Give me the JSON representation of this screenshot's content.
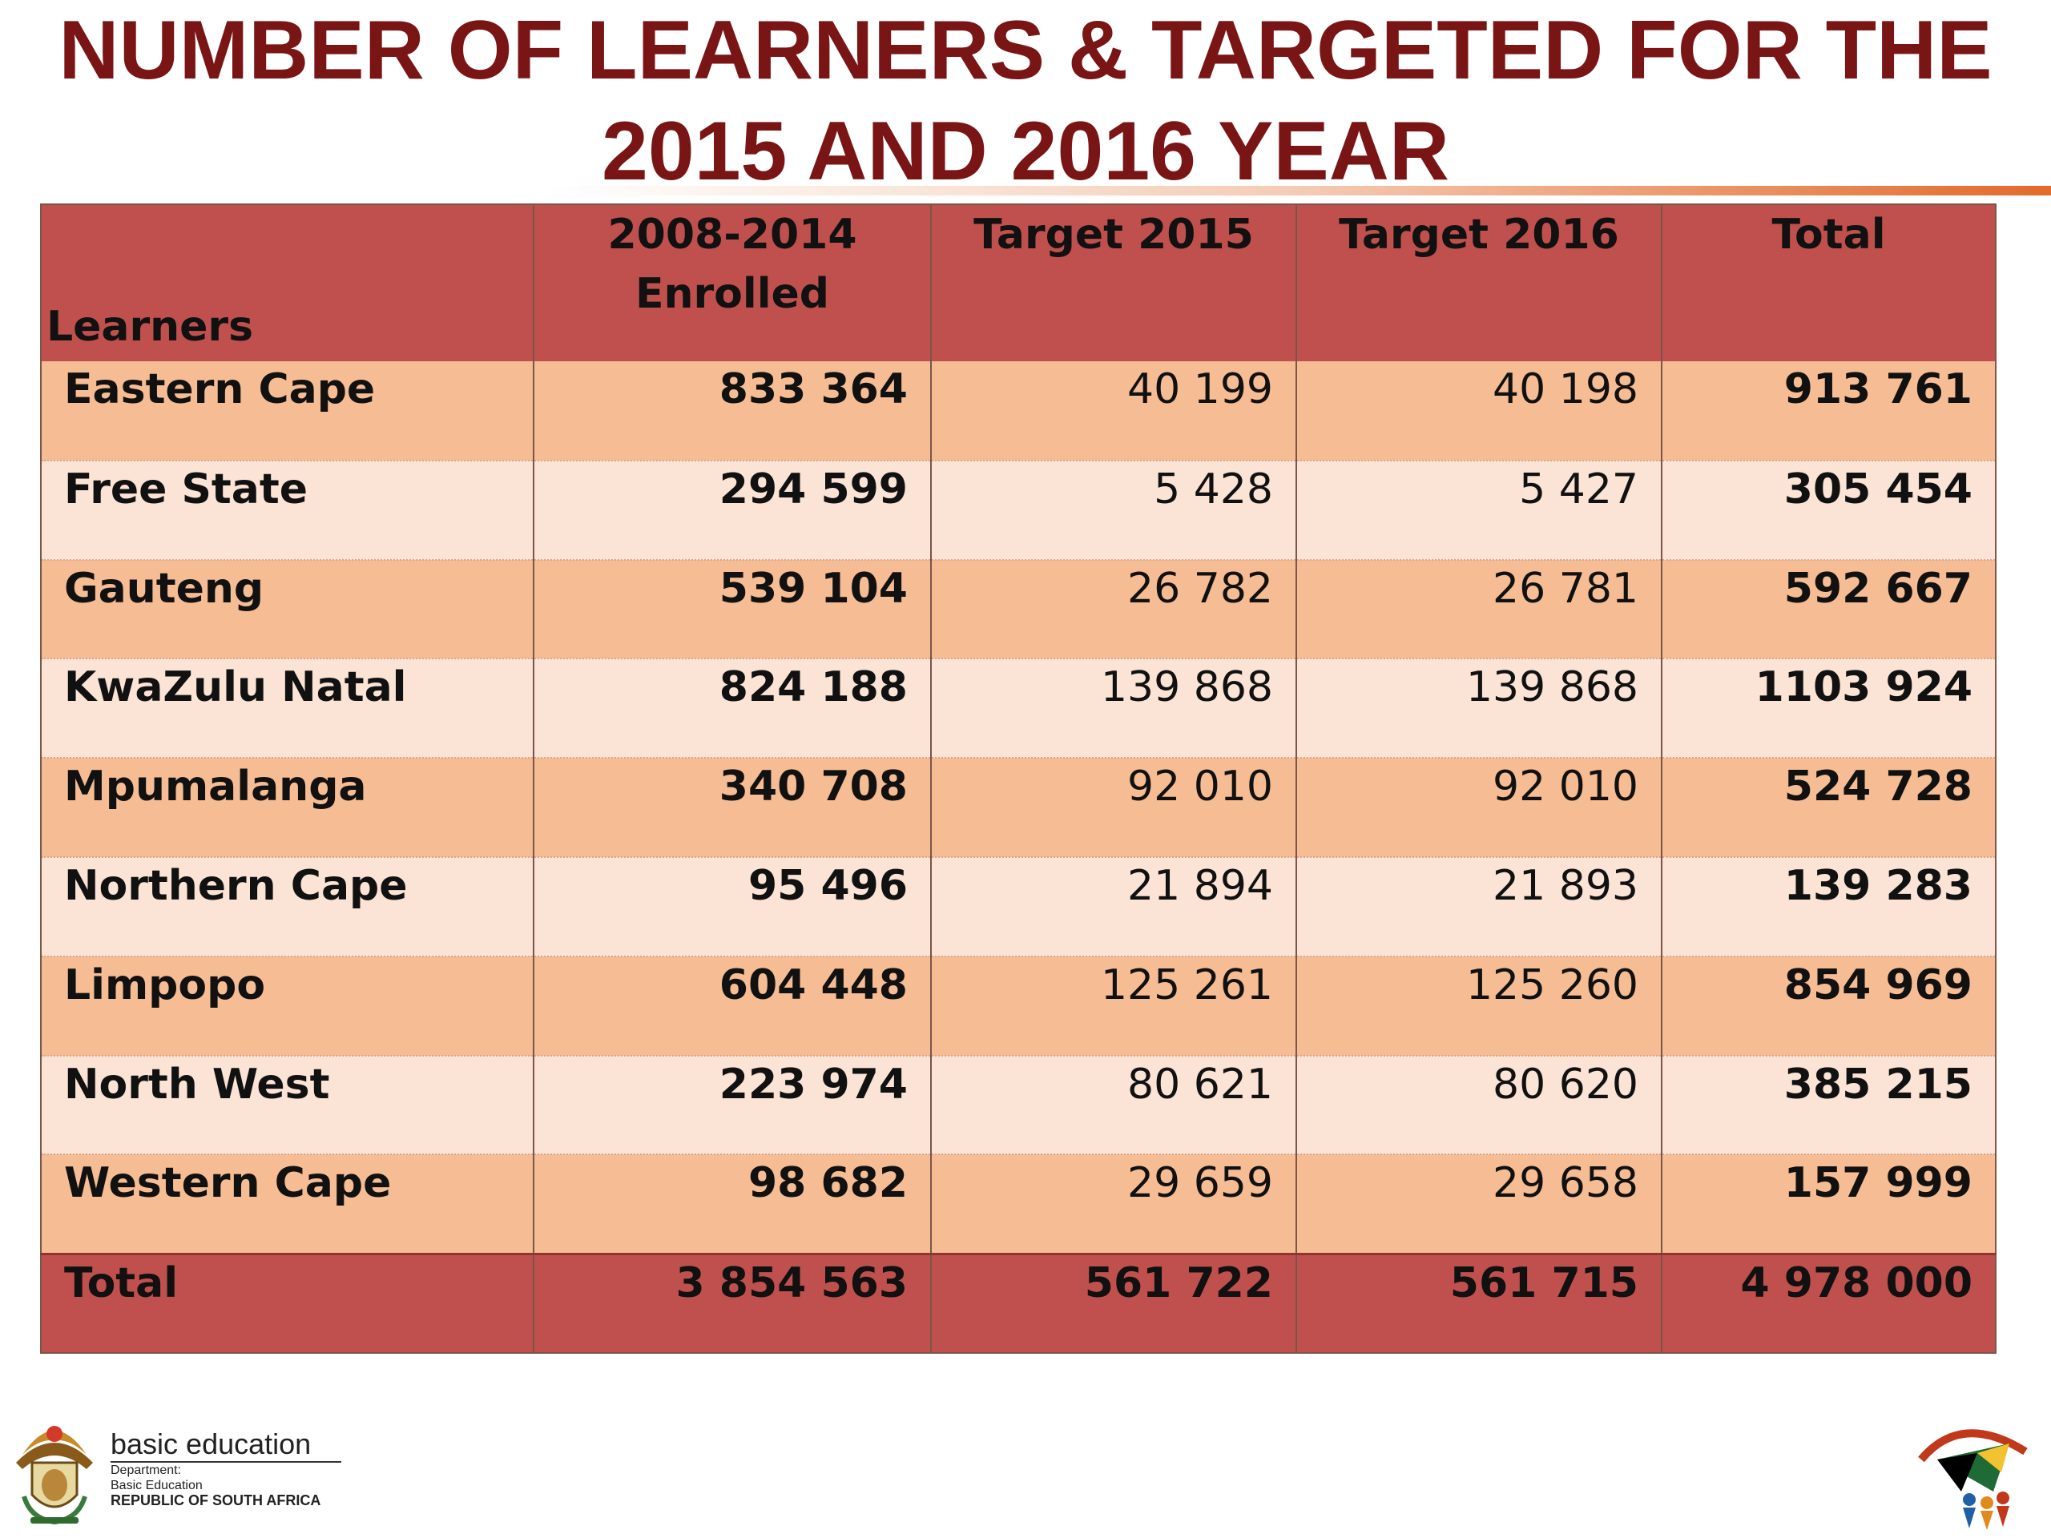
{
  "title": {
    "line1": "NUMBER OF LEARNERS & TARGETED FOR THE",
    "line2": "2015 AND 2016 YEAR"
  },
  "colors": {
    "title": "#7a1515",
    "header_bg": "#c0504d",
    "row_odd": "#f6bc93",
    "row_even": "#fbe3d6",
    "accent_rule": "#e26a2a"
  },
  "table": {
    "headers": {
      "learners": "Learners",
      "enrolled_line1": "2008-2014",
      "enrolled_line2": "Enrolled",
      "target2015": "Target 2015",
      "target2016": "Target 2016",
      "total": "Total"
    },
    "rows": [
      {
        "province": "Eastern Cape",
        "enrolled": "833 364",
        "target2015": "40 199",
        "target2016": "40 198",
        "total": "913 761"
      },
      {
        "province": "Free State",
        "enrolled": "294 599",
        "target2015": "5 428",
        "target2016": "5 427",
        "total": "305 454"
      },
      {
        "province": "Gauteng",
        "enrolled": "539 104",
        "target2015": "26 782",
        "target2016": "26 781",
        "total": "592 667"
      },
      {
        "province": "KwaZulu Natal",
        "enrolled": "824 188",
        "target2015": "139 868",
        "target2016": "139 868",
        "total": "1103 924"
      },
      {
        "province": "Mpumalanga",
        "enrolled": "340 708",
        "target2015": "92 010",
        "target2016": "92 010",
        "total": "524 728"
      },
      {
        "province": "Northern Cape",
        "enrolled": "95 496",
        "target2015": "21 894",
        "target2016": "21 893",
        "total": "139 283"
      },
      {
        "province": "Limpopo",
        "enrolled": "604 448",
        "target2015": "125 261",
        "target2016": "125 260",
        "total": "854 969"
      },
      {
        "province": "North West",
        "enrolled": "223 974",
        "target2015": "80 621",
        "target2016": "80 620",
        "total": "385 215"
      },
      {
        "province": "Western Cape",
        "enrolled": "98 682",
        "target2015": "29 659",
        "target2016": "29 658",
        "total": "157 999"
      }
    ],
    "total_row": {
      "label": "Total",
      "enrolled": "3 854 563",
      "target2015": "561 722",
      "target2016": "561 715",
      "total": "4 978 000"
    }
  },
  "footer": {
    "brand": "basic education",
    "department_line1": "Department:",
    "department_line2": "Basic Education",
    "department_line3": "REPUBLIC OF SOUTH AFRICA",
    "logo_icon": "coat-of-arms-icon",
    "anniversary_icon": "20-years-of-freedom-icon"
  }
}
